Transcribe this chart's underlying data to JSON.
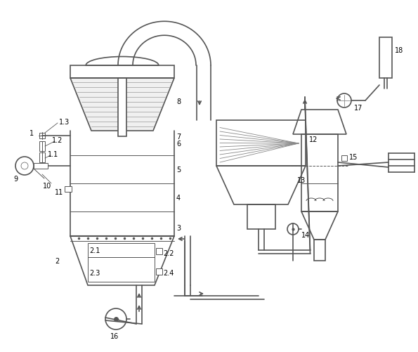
{
  "lc": "#555555",
  "lw": 1.2,
  "tlw": 0.7,
  "fs": 7
}
